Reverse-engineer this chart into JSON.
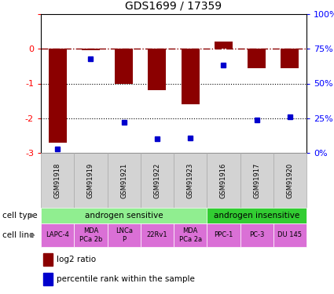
{
  "title": "GDS1699 / 17359",
  "samples": [
    "GSM91918",
    "GSM91919",
    "GSM91921",
    "GSM91922",
    "GSM91923",
    "GSM91916",
    "GSM91917",
    "GSM91920"
  ],
  "log2_ratio": [
    -2.7,
    -0.05,
    -1.0,
    -1.2,
    -1.6,
    0.2,
    -0.55,
    -0.55
  ],
  "percentile_rank": [
    3,
    68,
    22,
    10,
    11,
    63,
    24,
    26
  ],
  "cell_types": [
    {
      "label": "androgen sensitive",
      "span": [
        0,
        5
      ],
      "color": "#90ee90"
    },
    {
      "label": "androgen insensitive",
      "span": [
        5,
        8
      ],
      "color": "#32cd32"
    }
  ],
  "cell_lines": [
    {
      "label": "LAPC-4",
      "span": [
        0,
        1
      ]
    },
    {
      "label": "MDA\nPCa 2b",
      "span": [
        1,
        2
      ]
    },
    {
      "label": "LNCa\nP",
      "span": [
        2,
        3
      ]
    },
    {
      "label": "22Rv1",
      "span": [
        3,
        4
      ]
    },
    {
      "label": "MDA\nPCa 2a",
      "span": [
        4,
        5
      ]
    },
    {
      "label": "PPC-1",
      "span": [
        5,
        6
      ]
    },
    {
      "label": "PC-3",
      "span": [
        6,
        7
      ]
    },
    {
      "label": "DU 145",
      "span": [
        7,
        8
      ]
    }
  ],
  "cell_line_color": "#da70d6",
  "bar_color": "#8b0000",
  "dot_color": "#0000cd",
  "ylim_left": [
    -3,
    1
  ],
  "ylim_right": [
    0,
    100
  ],
  "sample_bg_color": "#d3d3d3",
  "sample_border_color": "#aaaaaa",
  "fig_width": 4.25,
  "fig_height": 3.75,
  "fig_dpi": 100
}
